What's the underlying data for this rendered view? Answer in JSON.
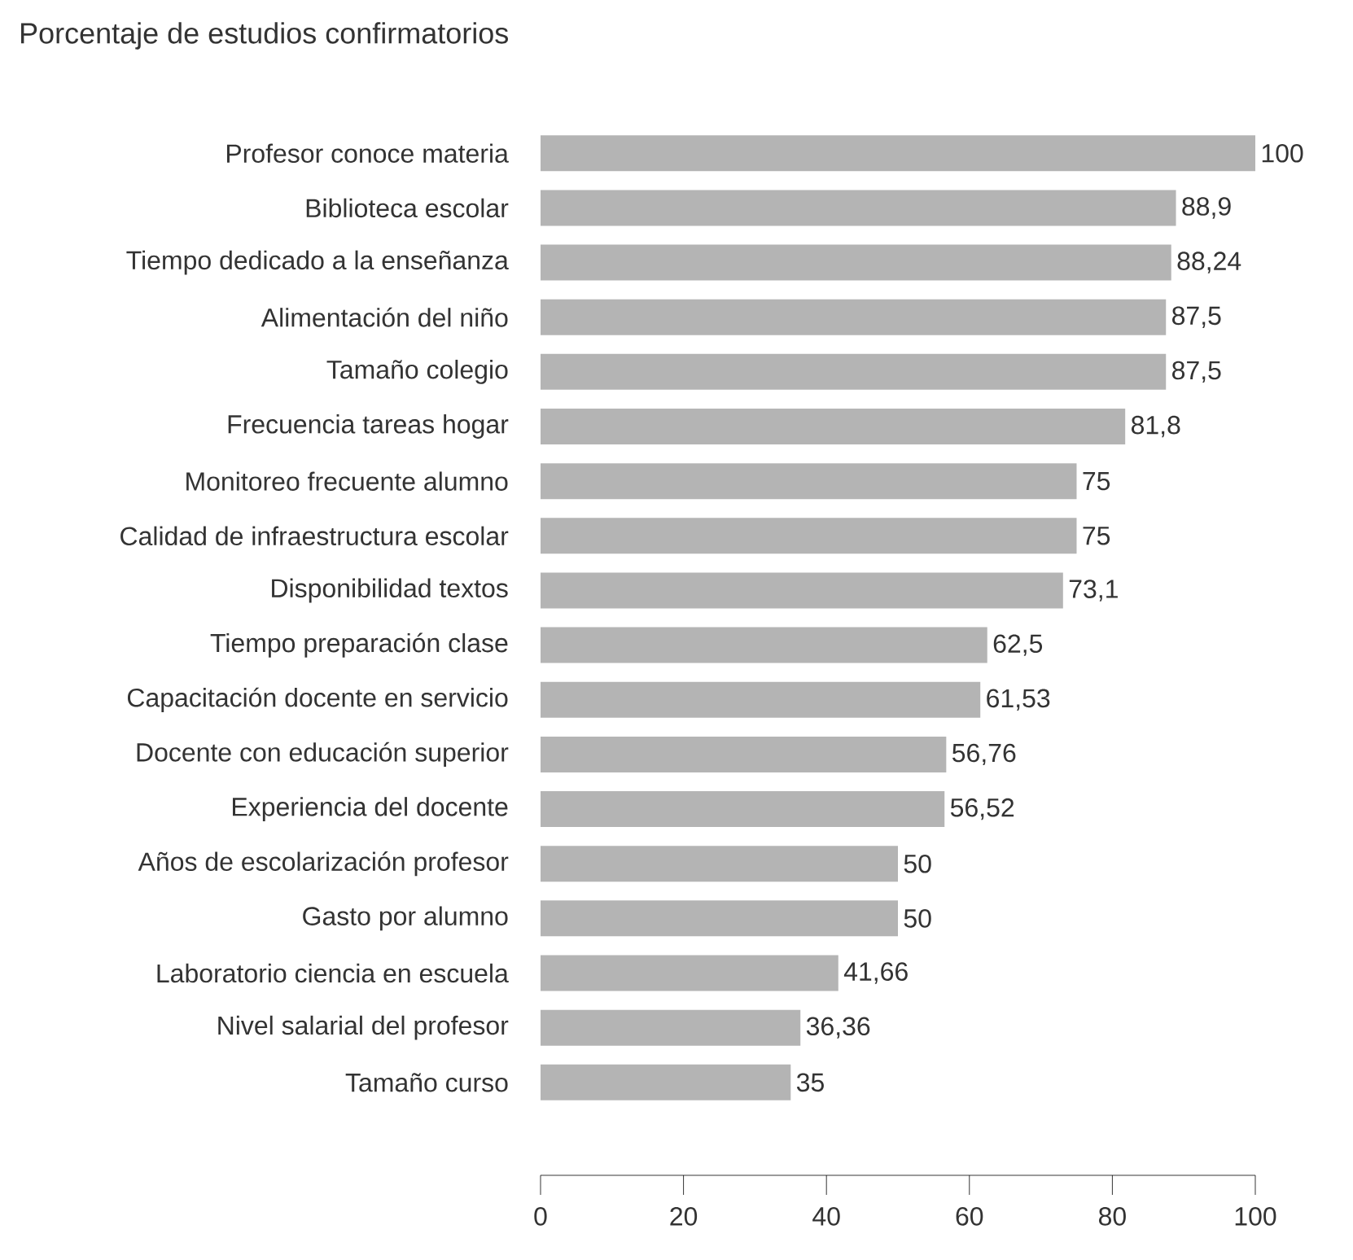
{
  "chart_data": {
    "type": "bar",
    "orientation": "horizontal",
    "title": "Porcentaje de estudios confirmatorios",
    "categories": [
      "Profesor conoce materia",
      "Biblioteca escolar",
      "Tiempo dedicado a la enseñanza",
      "Alimentación del niño",
      "Tamaño colegio",
      "Frecuencia tareas hogar",
      "Monitoreo frecuente alumno",
      "Calidad de infraestructura escolar",
      "Disponibilidad textos",
      "Tiempo preparación clase",
      "Capacitación docente en servicio",
      "Docente con educación superior",
      "Experiencia del docente",
      "Años de escolarización profesor",
      "Gasto por alumno",
      "Laboratorio ciencia en escuela",
      "Nivel salarial del profesor",
      "Tamaño curso"
    ],
    "values": [
      100,
      88.9,
      88.24,
      87.5,
      87.5,
      81.8,
      75,
      75,
      73.1,
      62.5,
      61.53,
      56.76,
      56.52,
      50,
      50,
      41.66,
      36.36,
      35
    ],
    "value_labels": [
      "100",
      "88,9",
      "88,24",
      "87,5",
      "87,5",
      "81,8",
      "75",
      "75",
      "73,1",
      "62,5",
      "61,53",
      "56,76",
      "56,52",
      "50",
      "50",
      "41,66",
      "36,36",
      "35"
    ],
    "color": "#b4b4b4",
    "xlim": [
      0,
      100
    ],
    "xticks": [
      0,
      20,
      40,
      60,
      80,
      100
    ]
  }
}
